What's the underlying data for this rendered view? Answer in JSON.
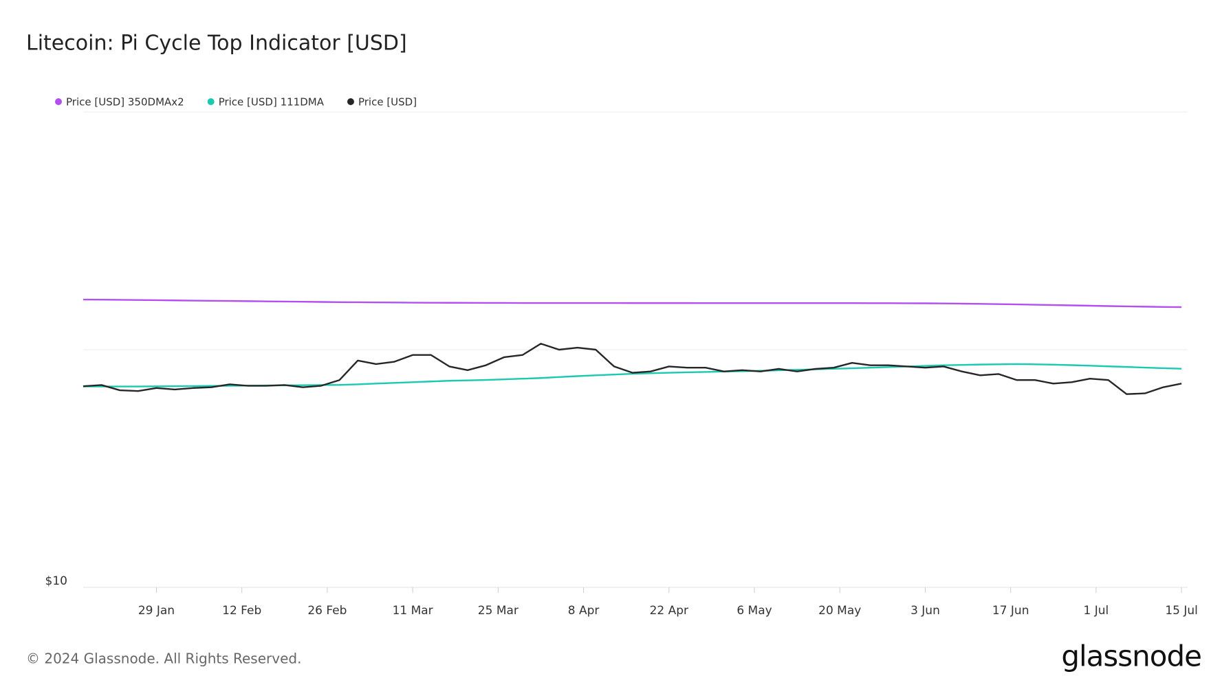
{
  "chart_data": {
    "type": "line",
    "title": "Litecoin: Pi Cycle Top Indicator [USD]",
    "footer": "© 2024 Glassnode. All Rights Reserved.",
    "brand": "glassnode",
    "log_scale": true,
    "grid": true,
    "legend": "top-left",
    "ylim": [
      10,
      1000
    ],
    "yticks": [
      {
        "value": 10,
        "label": "$10"
      }
    ],
    "xlim": [
      "17 Jan",
      "16 Jul"
    ],
    "xticks": [
      "29 Jan",
      "12 Feb",
      "26 Feb",
      "11 Mar",
      "25 Mar",
      "8 Apr",
      "22 Apr",
      "6 May",
      "20 May",
      "3 Jun",
      "17 Jun",
      "1 Jul",
      "15 Jul"
    ],
    "x": [
      "17 Jan",
      "20 Jan",
      "23 Jan",
      "26 Jan",
      "29 Jan",
      "1 Feb",
      "4 Feb",
      "7 Feb",
      "10 Feb",
      "13 Feb",
      "16 Feb",
      "19 Feb",
      "22 Feb",
      "25 Feb",
      "28 Feb",
      "2 Mar",
      "5 Mar",
      "8 Mar",
      "11 Mar",
      "14 Mar",
      "17 Mar",
      "20 Mar",
      "23 Mar",
      "26 Mar",
      "29 Mar",
      "1 Apr",
      "4 Apr",
      "7 Apr",
      "10 Apr",
      "13 Apr",
      "16 Apr",
      "19 Apr",
      "22 Apr",
      "25 Apr",
      "28 Apr",
      "1 May",
      "4 May",
      "7 May",
      "10 May",
      "13 May",
      "16 May",
      "19 May",
      "22 May",
      "25 May",
      "28 May",
      "31 May",
      "3 Jun",
      "6 Jun",
      "9 Jun",
      "12 Jun",
      "15 Jun",
      "18 Jun",
      "21 Jun",
      "24 Jun",
      "27 Jun",
      "30 Jun",
      "3 Jul",
      "6 Jul",
      "9 Jul",
      "12 Jul",
      "15 Jul"
    ],
    "series": [
      {
        "name": "Price [USD] 350DMAx2",
        "color": "#b34ff0",
        "values": [
          162.5,
          162.3,
          162.1,
          161.8,
          161.5,
          161.2,
          160.9,
          160.6,
          160.3,
          160,
          159.7,
          159.4,
          159.1,
          158.8,
          158.5,
          158.3,
          158.1,
          157.9,
          157.7,
          157.6,
          157.5,
          157.4,
          157.3,
          157.3,
          157.2,
          157.2,
          157.2,
          157.2,
          157.2,
          157.2,
          157.1,
          157.1,
          157.1,
          157.1,
          157,
          157,
          157,
          157,
          157,
          157,
          157,
          157,
          157,
          156.9,
          156.9,
          156.8,
          156.7,
          156.5,
          156.2,
          155.9,
          155.5,
          155.1,
          154.6,
          154.1,
          153.6,
          153.1,
          152.6,
          152.1,
          151.7,
          151.3,
          151
        ]
      },
      {
        "name": "Price [USD] 111DMA",
        "color": "#19c9b1",
        "values": [
          70,
          70,
          70,
          70,
          70.1,
          70.2,
          70.3,
          70.4,
          70.5,
          70.6,
          70.7,
          70.8,
          70.9,
          71,
          71.1,
          71.5,
          72,
          72.5,
          73,
          73.5,
          74,
          74.3,
          74.6,
          75,
          75.5,
          76,
          76.7,
          77.4,
          78,
          78.6,
          79.2,
          79.6,
          80,
          80.3,
          80.6,
          80.9,
          81.2,
          81.5,
          81.9,
          82.3,
          82.7,
          83.1,
          83.5,
          84,
          84.5,
          85,
          85.5,
          86,
          86.3,
          86.6,
          86.8,
          87,
          86.8,
          86.5,
          86.1,
          85.6,
          85.1,
          84.6,
          84.1,
          83.6,
          83.2
        ]
      },
      {
        "name": "Price [USD]",
        "color": "#262626",
        "values": [
          70.2,
          71,
          67.5,
          67,
          69,
          68,
          69,
          69.5,
          71.5,
          70.5,
          70.5,
          71,
          69.5,
          70.5,
          74.5,
          90,
          87,
          89,
          95,
          95,
          85,
          82,
          86,
          93,
          95,
          106,
          100,
          102,
          100,
          85,
          80,
          81,
          85,
          84,
          84,
          81,
          82,
          81,
          83,
          81,
          83,
          84,
          88,
          86,
          86,
          85,
          84,
          85,
          81,
          78,
          79,
          74.5,
          74.5,
          72,
          73,
          75.5,
          74.5,
          65,
          65.5,
          69.5,
          72
        ]
      }
    ]
  }
}
